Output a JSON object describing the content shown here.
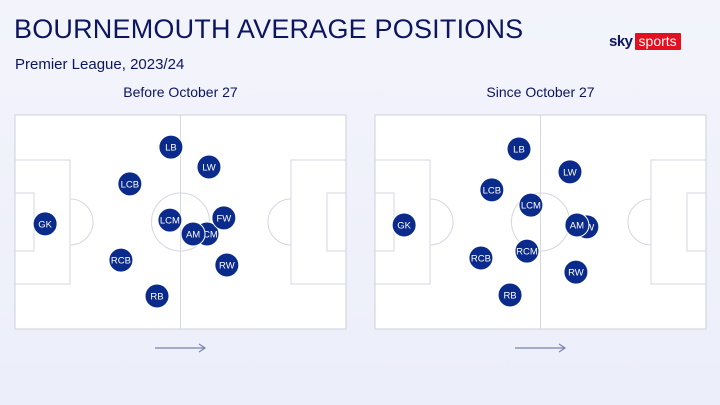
{
  "header": {
    "title": "BOURNEMOUTH AVERAGE POSITIONS",
    "subtitle": "Premier League, 2023/24"
  },
  "logo": {
    "sky": "sky",
    "sports": "sports",
    "brand_color": "#e4101f"
  },
  "colors": {
    "player": "#0a2a8c",
    "text": "#0b1560"
  },
  "chart_data": [
    {
      "type": "scatter",
      "title": "Before October 27",
      "direction": "left-to-right",
      "units": "percent of pitch length (x) and width (y)",
      "players": [
        {
          "pos": "GK",
          "x": 9.1,
          "y": 50.9
        },
        {
          "pos": "LB",
          "x": 47.1,
          "y": 15.0
        },
        {
          "pos": "LCB",
          "x": 34.7,
          "y": 32.2
        },
        {
          "pos": "RCB",
          "x": 32.0,
          "y": 67.8
        },
        {
          "pos": "RB",
          "x": 42.9,
          "y": 84.6
        },
        {
          "pos": "LW",
          "x": 58.6,
          "y": 24.3
        },
        {
          "pos": "RCM",
          "x": 58.0,
          "y": 55.6
        },
        {
          "pos": "FW",
          "x": 63.1,
          "y": 48.1
        },
        {
          "pos": "RW",
          "x": 64.0,
          "y": 70.1
        },
        {
          "pos": "LCM",
          "x": 46.8,
          "y": 49.1
        },
        {
          "pos": "AM",
          "x": 53.8,
          "y": 55.6
        }
      ]
    },
    {
      "type": "scatter",
      "title": "Since October 27",
      "direction": "left-to-right",
      "units": "percent of pitch length (x) and width (y)",
      "players": [
        {
          "pos": "GK",
          "x": 8.8,
          "y": 51.4
        },
        {
          "pos": "LB",
          "x": 43.5,
          "y": 15.9
        },
        {
          "pos": "LCB",
          "x": 35.3,
          "y": 35.0
        },
        {
          "pos": "LCM",
          "x": 47.1,
          "y": 42.1
        },
        {
          "pos": "RCM",
          "x": 45.9,
          "y": 63.6
        },
        {
          "pos": "RCB",
          "x": 32.0,
          "y": 66.8
        },
        {
          "pos": "RB",
          "x": 40.8,
          "y": 84.1
        },
        {
          "pos": "LW",
          "x": 58.9,
          "y": 26.6
        },
        {
          "pos": "FW",
          "x": 64.0,
          "y": 52.3
        },
        {
          "pos": "AM",
          "x": 61.0,
          "y": 51.4
        },
        {
          "pos": "RW",
          "x": 60.7,
          "y": 73.4
        }
      ]
    }
  ]
}
